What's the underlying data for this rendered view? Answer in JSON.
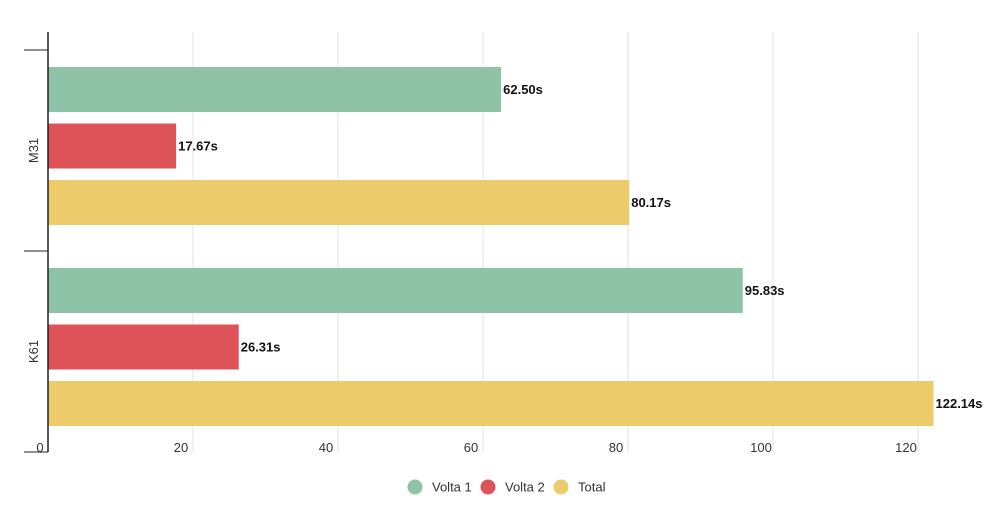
{
  "chart_data": {
    "type": "bar",
    "orientation": "horizontal",
    "categories": [
      "M31",
      "K61"
    ],
    "series": [
      {
        "name": "Volta 1",
        "values": [
          62.5,
          95.83
        ],
        "labels": [
          "62.50s",
          "95.83s"
        ],
        "color": "#8fc3a8"
      },
      {
        "name": "Volta 2",
        "values": [
          17.67,
          26.31
        ],
        "labels": [
          "17.67s",
          "26.31s"
        ],
        "color": "#dd5358"
      },
      {
        "name": "Total",
        "values": [
          80.17,
          122.14
        ],
        "labels": [
          "80.17s",
          "122.14s"
        ],
        "color": "#eecb6a"
      }
    ],
    "xlim": [
      0,
      125
    ],
    "xticks": [
      0,
      20,
      40,
      60,
      80,
      100,
      120
    ],
    "xtick_labels": [
      "0",
      "20",
      "40",
      "60",
      "80",
      "100",
      "120"
    ],
    "grid": true,
    "legend_position": "bottom-center"
  }
}
